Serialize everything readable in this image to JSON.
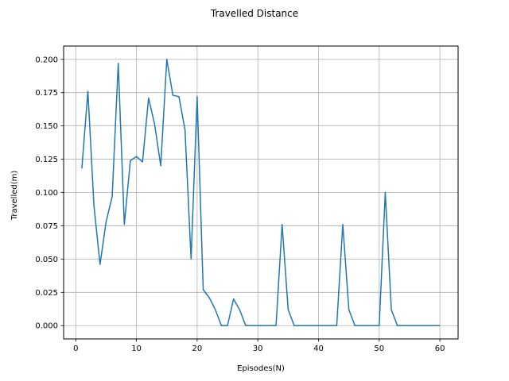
{
  "chart_data": {
    "type": "line",
    "title": "Travelled Distance",
    "xlabel": "Episodes(N)",
    "ylabel": "Travelled(m)",
    "xlim": [
      -2,
      63
    ],
    "ylim": [
      -0.01,
      0.21
    ],
    "grid": true,
    "x_ticks": [
      0,
      10,
      20,
      30,
      40,
      50,
      60
    ],
    "x_tick_labels": [
      "0",
      "10",
      "20",
      "30",
      "40",
      "50",
      "60"
    ],
    "y_ticks": [
      0,
      0.025,
      0.05,
      0.075,
      0.1,
      0.125,
      0.15,
      0.175,
      0.2
    ],
    "y_tick_labels": [
      "0.000",
      "0.025",
      "0.050",
      "0.075",
      "0.100",
      "0.125",
      "0.150",
      "0.175",
      "0.200"
    ],
    "series": [
      {
        "color": "#1f77b4",
        "x": [
          1,
          2,
          3,
          4,
          5,
          6,
          7,
          8,
          9,
          10,
          11,
          12,
          13,
          14,
          15,
          16,
          17,
          18,
          19,
          20,
          21,
          22,
          23,
          24,
          25,
          26,
          27,
          28,
          29,
          30,
          31,
          32,
          33,
          34,
          35,
          36,
          37,
          38,
          39,
          40,
          41,
          42,
          43,
          44,
          45,
          46,
          47,
          48,
          49,
          50,
          51,
          52,
          53,
          54,
          55,
          56,
          57,
          58,
          59,
          60
        ],
        "values": [
          0.118,
          0.176,
          0.09,
          0.046,
          0.078,
          0.097,
          0.197,
          0.076,
          0.124,
          0.127,
          0.123,
          0.171,
          0.151,
          0.12,
          0.2,
          0.173,
          0.172,
          0.147,
          0.05,
          0.172,
          0.027,
          0.021,
          0.012,
          0.0,
          0.0,
          0.02,
          0.012,
          0.0,
          0.0,
          0.0,
          0.0,
          0.0,
          0.0,
          0.076,
          0.012,
          0.0,
          0.0,
          0.0,
          0.0,
          0.0,
          0.0,
          0.0,
          0.0,
          0.076,
          0.012,
          0.0,
          0.0,
          0.0,
          0.0,
          0.0,
          0.1,
          0.012,
          0.0,
          0.0,
          0.0,
          0.0,
          0.0,
          0.0,
          0.0,
          0.0
        ]
      }
    ]
  }
}
